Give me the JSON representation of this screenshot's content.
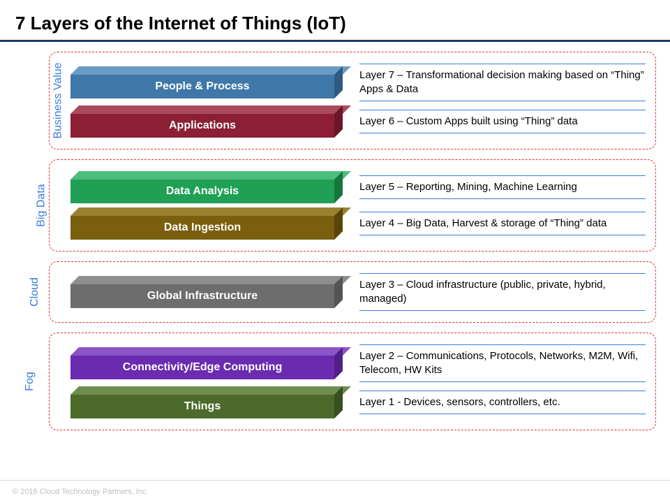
{
  "title": "7 Layers of the Internet of Things (IoT)",
  "title_fontsize": 26,
  "title_rule_color": "#1e3a5f",
  "group_border_color": "#d33",
  "group_label_color": "#3b7dd8",
  "desc_line_color": "#3b7dd8",
  "desc_fontsize": 15,
  "bar_label_fontsize": 16,
  "bar_label_color": "#ffffff",
  "groups": [
    {
      "label": "Business Value",
      "rows": [
        {
          "bar_label": "People & Process",
          "colors": {
            "front": "#3f78a8",
            "top": "#6a9bc4",
            "side": "#2e5a80"
          },
          "desc": "Layer 7 – Transformational decision making based on “Thing” Apps & Data"
        },
        {
          "bar_label": "Applications",
          "colors": {
            "front": "#8c1f33",
            "top": "#a94a5c",
            "side": "#6a1626"
          },
          "desc": "Layer 6 – Custom Apps built using “Thing” data"
        }
      ]
    },
    {
      "label": "Big Data",
      "rows": [
        {
          "bar_label": "Data Analysis",
          "colors": {
            "front": "#1fa055",
            "top": "#4dbd7d",
            "side": "#16763e"
          },
          "desc": "Layer 5 – Reporting, Mining, Machine Learning"
        },
        {
          "bar_label": "Data Ingestion",
          "colors": {
            "front": "#7a5f0e",
            "top": "#9a8232",
            "side": "#5a4508"
          },
          "desc": "Layer 4 – Big Data, Harvest & storage of “Thing” data"
        }
      ]
    },
    {
      "label": "Cloud",
      "rows": [
        {
          "bar_label": "Global Infrastructure",
          "colors": {
            "front": "#6d6d6d",
            "top": "#8e8e8e",
            "side": "#545454"
          },
          "desc": "Layer 3 – Cloud infrastructure (public, private, hybrid, managed)"
        }
      ]
    },
    {
      "label": "Fog",
      "rows": [
        {
          "bar_label": "Connectivity/Edge Computing",
          "colors": {
            "front": "#6a2bb0",
            "top": "#8b54c8",
            "side": "#501f87"
          },
          "desc": "Layer 2 – Communications, Protocols, Networks, M2M, Wifi, Telecom, HW Kits"
        },
        {
          "bar_label": "Things",
          "colors": {
            "front": "#4c6b2b",
            "top": "#6f8e4d",
            "side": "#384f1f"
          },
          "desc": "Layer 1 - Devices, sensors, controllers, etc."
        }
      ]
    }
  ],
  "footer": "© 2016 Cloud Technology Partners, Inc.",
  "footer_color": "#bfbfbf"
}
